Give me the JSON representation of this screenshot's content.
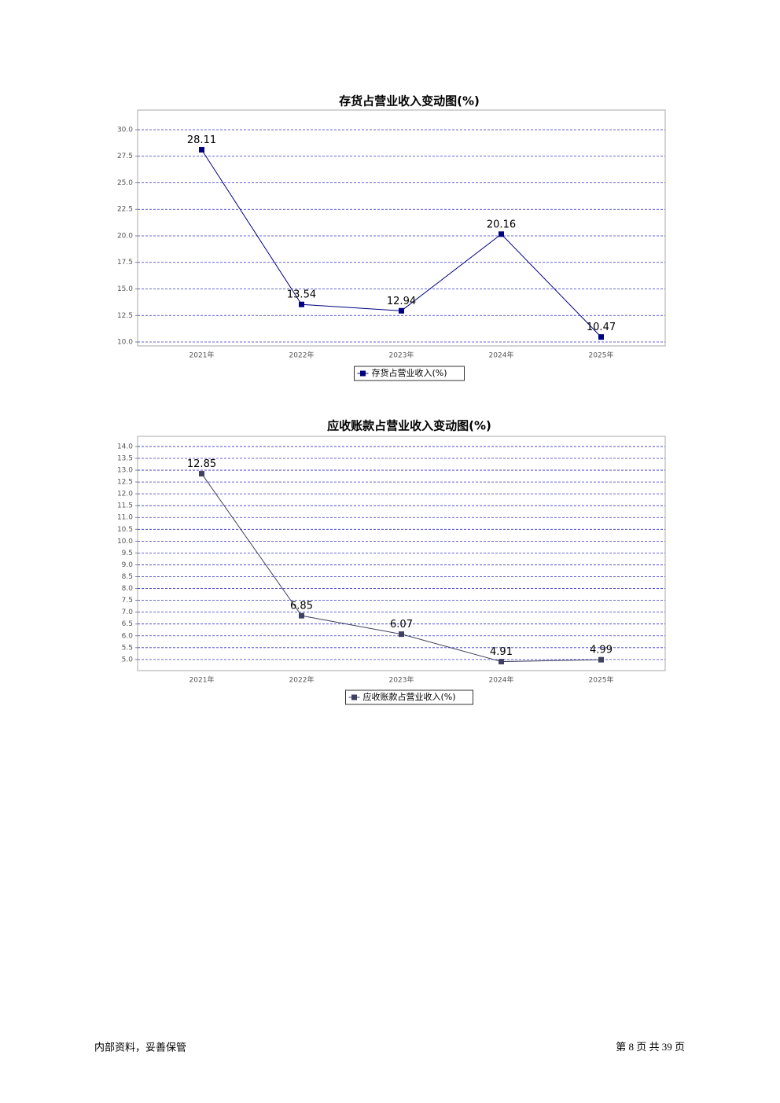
{
  "chart_data": [
    {
      "type": "line",
      "title": "存货占营业收入变动图(%)",
      "categories": [
        "2021年",
        "2022年",
        "2023年",
        "2024年",
        "2025年"
      ],
      "series": [
        {
          "name": "存货占营业收入(%)",
          "color": "#000080",
          "values": [
            28.11,
            13.54,
            12.94,
            20.16,
            10.47
          ]
        }
      ],
      "ylim": [
        9.63,
        31.85
      ],
      "yticks": [
        {
          "value": 10,
          "label": "10.0"
        },
        12.5,
        {
          "value": 15,
          "label": "15.0"
        },
        17.5,
        {
          "value": 20,
          "label": "20.0"
        },
        22.5,
        {
          "value": 25,
          "label": "25.0"
        },
        27.5,
        {
          "value": 30,
          "label": "30.0"
        }
      ],
      "grid": true
    },
    {
      "type": "line",
      "title": "应收账款占营业收入变动图(%)",
      "categories": [
        "2021年",
        "2022年",
        "2023年",
        "2024年",
        "2025年"
      ],
      "series": [
        {
          "name": "应收账款占营业收入(%)",
          "color": "#404060",
          "values": [
            12.85,
            6.85,
            6.07,
            4.91,
            4.99
          ]
        }
      ],
      "ylim": [
        4.53,
        14.43
      ],
      "yticks": [
        {
          "value": 5,
          "label": "5.0"
        },
        5.5,
        {
          "value": 6,
          "label": "6.0"
        },
        6.5,
        {
          "value": 7,
          "label": "7.0"
        },
        7.5,
        {
          "value": 8,
          "label": "8.0"
        },
        8.5,
        {
          "value": 9,
          "label": "9.0"
        },
        9.5,
        {
          "value": 10,
          "label": "10.0"
        },
        10.5,
        {
          "value": 11,
          "label": "11.0"
        },
        11.5,
        {
          "value": 12,
          "label": "12.0"
        },
        12.5,
        {
          "value": 13,
          "label": "13.0"
        },
        13.5,
        {
          "value": 14,
          "label": "14.0"
        }
      ],
      "grid": true
    }
  ],
  "footer": {
    "left": "内部资料，妥善保管",
    "right": "第 8 页 共 39 页"
  }
}
